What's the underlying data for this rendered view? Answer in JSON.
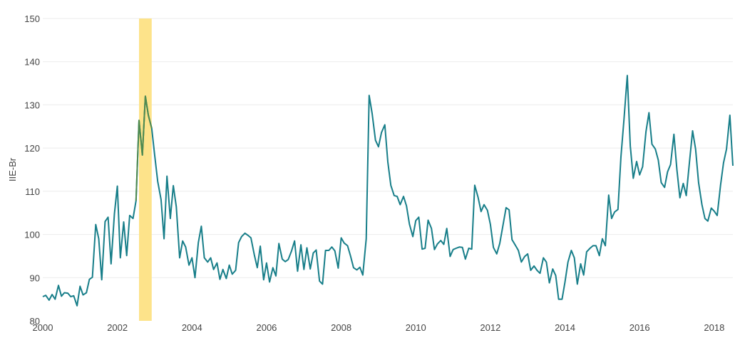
{
  "chart_data": {
    "type": "line",
    "title": "",
    "xlabel": "",
    "ylabel": "IIE-Br",
    "ylim": [
      80,
      150
    ],
    "xlim": [
      2000,
      2018.5
    ],
    "y_ticks": [
      80,
      90,
      100,
      110,
      120,
      130,
      140,
      150
    ],
    "x_ticks": [
      2000,
      2002,
      2004,
      2006,
      2008,
      2010,
      2012,
      2014,
      2016,
      2018
    ],
    "grid": "horizontal",
    "line_color": "#177e89",
    "highlight_color": "#fde38a",
    "highlight_line_color": "#4f8a4f",
    "highlight_range": [
      2002.58,
      2002.92
    ],
    "series": [
      {
        "x": [
          2000.0,
          2000.08,
          2000.17,
          2000.25,
          2000.33,
          2000.42,
          2000.5,
          2000.58,
          2000.67,
          2000.75,
          2000.83,
          2000.92,
          2001.0,
          2001.08,
          2001.17,
          2001.25,
          2001.33,
          2001.42,
          2001.5,
          2001.58,
          2001.67,
          2001.75,
          2001.83,
          2001.92,
          2002.0,
          2002.08,
          2002.17,
          2002.25,
          2002.33,
          2002.42,
          2002.5,
          2002.58,
          2002.67,
          2002.75,
          2002.83,
          2002.92,
          2003.0,
          2003.08,
          2003.17,
          2003.25,
          2003.33,
          2003.42,
          2003.5,
          2003.58,
          2003.67,
          2003.75,
          2003.83,
          2003.92,
          2004.0,
          2004.08,
          2004.17,
          2004.25,
          2004.33,
          2004.42,
          2004.5,
          2004.58,
          2004.67,
          2004.75,
          2004.83,
          2004.92,
          2005.0,
          2005.08,
          2005.17,
          2005.25,
          2005.33,
          2005.42,
          2005.5,
          2005.58,
          2005.67,
          2005.75,
          2005.83,
          2005.92,
          2006.0,
          2006.08,
          2006.17,
          2006.25,
          2006.33,
          2006.42,
          2006.5,
          2006.58,
          2006.67,
          2006.75,
          2006.83,
          2006.92,
          2007.0,
          2007.08,
          2007.17,
          2007.25,
          2007.33,
          2007.42,
          2007.5,
          2007.58,
          2007.67,
          2007.75,
          2007.83,
          2007.92,
          2008.0,
          2008.08,
          2008.17,
          2008.25,
          2008.33,
          2008.42,
          2008.5,
          2008.58,
          2008.67,
          2008.75,
          2008.83,
          2008.92,
          2009.0,
          2009.08,
          2009.17,
          2009.25,
          2009.33,
          2009.42,
          2009.5,
          2009.58,
          2009.67,
          2009.75,
          2009.83,
          2009.92,
          2010.0,
          2010.08,
          2010.17,
          2010.25,
          2010.33,
          2010.42,
          2010.5,
          2010.58,
          2010.67,
          2010.75,
          2010.83,
          2010.92,
          2011.0,
          2011.08,
          2011.17,
          2011.25,
          2011.33,
          2011.42,
          2011.5,
          2011.58,
          2011.67,
          2011.75,
          2011.83,
          2011.92,
          2012.0,
          2012.08,
          2012.17,
          2012.25,
          2012.33,
          2012.42,
          2012.5,
          2012.58,
          2012.67,
          2012.75,
          2012.83,
          2012.92,
          2013.0,
          2013.08,
          2013.17,
          2013.25,
          2013.33,
          2013.42,
          2013.5,
          2013.58,
          2013.67,
          2013.75,
          2013.83,
          2013.92,
          2014.0,
          2014.08,
          2014.17,
          2014.25,
          2014.33,
          2014.42,
          2014.5,
          2014.58,
          2014.67,
          2014.75,
          2014.83,
          2014.92,
          2015.0,
          2015.08,
          2015.17,
          2015.25,
          2015.33,
          2015.42,
          2015.5,
          2015.58,
          2015.67,
          2015.75,
          2015.83,
          2015.92,
          2016.0,
          2016.08,
          2016.17,
          2016.25,
          2016.33,
          2016.42,
          2016.5,
          2016.58,
          2016.67,
          2016.75,
          2016.83,
          2016.92,
          2017.0,
          2017.08,
          2017.17,
          2017.25,
          2017.33,
          2017.42,
          2017.5,
          2017.58,
          2017.67,
          2017.75,
          2017.83,
          2017.92,
          2018.0,
          2018.08,
          2018.17,
          2018.25,
          2018.33,
          2018.42,
          2018.5
        ],
        "y": [
          85.6,
          85.9,
          84.8,
          86.1,
          85.0,
          88.2,
          85.7,
          86.5,
          86.4,
          85.6,
          85.8,
          83.5,
          88.0,
          86.0,
          86.5,
          89.6,
          90.1,
          102.3,
          99.0,
          89.5,
          103.0,
          104.0,
          93.2,
          104.8,
          111.2,
          94.6,
          102.9,
          95.1,
          104.4,
          103.7,
          107.8,
          126.4,
          118.4,
          132.0,
          127.6,
          124.6,
          118.3,
          112.3,
          108.1,
          99.0,
          113.5,
          103.7,
          111.3,
          106.4,
          94.6,
          98.5,
          97.1,
          92.9,
          94.6,
          90.0,
          98.1,
          101.9,
          94.6,
          93.6,
          94.6,
          91.9,
          93.4,
          89.6,
          91.9,
          89.8,
          92.9,
          90.8,
          91.7,
          98.1,
          99.5,
          100.3,
          99.8,
          99.2,
          95.3,
          92.3,
          97.3,
          89.5,
          93.4,
          89.0,
          92.3,
          90.4,
          97.9,
          94.3,
          93.7,
          94.2,
          96.2,
          98.5,
          91.5,
          97.6,
          91.9,
          96.9,
          92.0,
          95.7,
          96.4,
          89.2,
          88.5,
          96.3,
          96.3,
          97.1,
          96.2,
          92.2,
          99.2,
          98.0,
          97.4,
          95.0,
          92.3,
          91.8,
          92.4,
          90.6,
          99.0,
          132.2,
          128.0,
          121.8,
          120.3,
          123.6,
          125.4,
          116.8,
          111.4,
          109.0,
          108.8,
          106.9,
          108.8,
          106.6,
          102.4,
          99.5,
          103.2,
          104.0,
          96.6,
          96.8,
          103.3,
          101.4,
          96.5,
          97.8,
          98.6,
          97.7,
          101.4,
          94.9,
          96.5,
          96.8,
          97.1,
          97.0,
          94.3,
          96.8,
          96.6,
          111.4,
          108.6,
          105.3,
          106.9,
          105.6,
          102.3,
          97.0,
          95.5,
          97.9,
          101.8,
          106.2,
          105.7,
          98.8,
          97.5,
          96.3,
          93.6,
          94.9,
          95.5,
          91.7,
          92.7,
          91.7,
          91.0,
          94.6,
          93.6,
          88.8,
          92.0,
          90.5,
          85.0,
          85.0,
          89.0,
          93.6,
          96.3,
          94.6,
          88.5,
          93.2,
          90.6,
          96.0,
          96.8,
          97.4,
          97.4,
          95.1,
          99.0,
          97.4,
          109.1,
          103.7,
          105.2,
          105.8,
          118.0,
          126.5,
          136.8,
          120.5,
          113.0,
          116.9,
          113.8,
          115.7,
          123.8,
          128.2,
          120.9,
          119.8,
          117.2,
          112.0,
          110.9,
          114.5,
          116.2,
          123.2,
          115.0,
          108.5,
          111.8,
          109.0,
          116.2,
          124.0,
          119.8,
          112.0,
          106.9,
          103.7,
          103.1,
          106.1,
          105.4,
          104.4,
          111.4,
          116.6,
          119.8,
          127.6,
          115.9
        ]
      }
    ]
  }
}
